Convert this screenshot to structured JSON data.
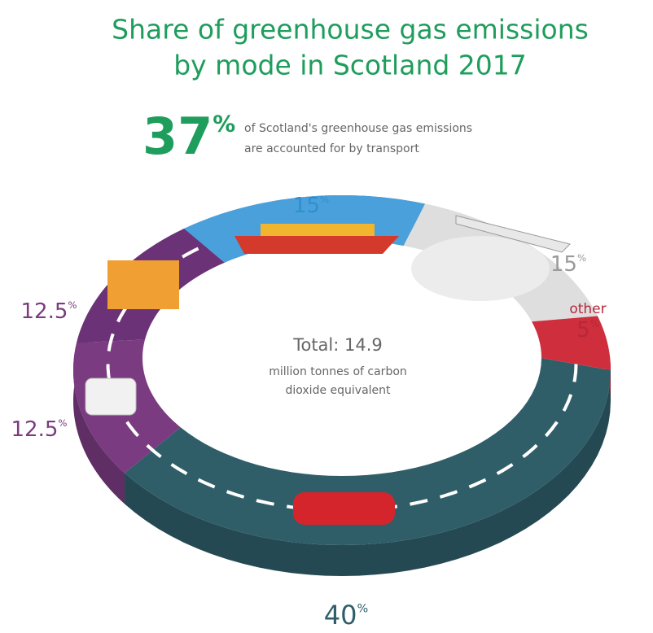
{
  "chart_data": {
    "type": "donut",
    "title": [
      "Share of greenhouse gas emissions",
      "by mode in Scotland 2017"
    ],
    "highlight": "37%",
    "highlight_text": [
      "of Scotland's greenhouse gas emissions",
      "are accounted for by transport"
    ],
    "center_text": [
      "Total: 14.9",
      "million tonnes of carbon",
      "dioxide equivalent"
    ],
    "categories": [
      null,
      null,
      null,
      null,
      null,
      "other"
    ],
    "values": [
      40,
      12.5,
      12.5,
      15,
      15,
      5
    ],
    "value_labels": [
      "40%",
      "12.5%",
      "12.5%",
      "15%",
      "15%",
      "5%"
    ],
    "colors": [
      "#2f5e69",
      "#7a3b80",
      "#6c3278",
      "#4aa0da",
      "#dedede",
      "#cf2f3d"
    ],
    "label_colors": [
      "#2f5e69",
      "#7a3b80",
      "#7a3b80",
      "#2f8fcf",
      "#9a9a9a",
      "#b5283a"
    ]
  }
}
